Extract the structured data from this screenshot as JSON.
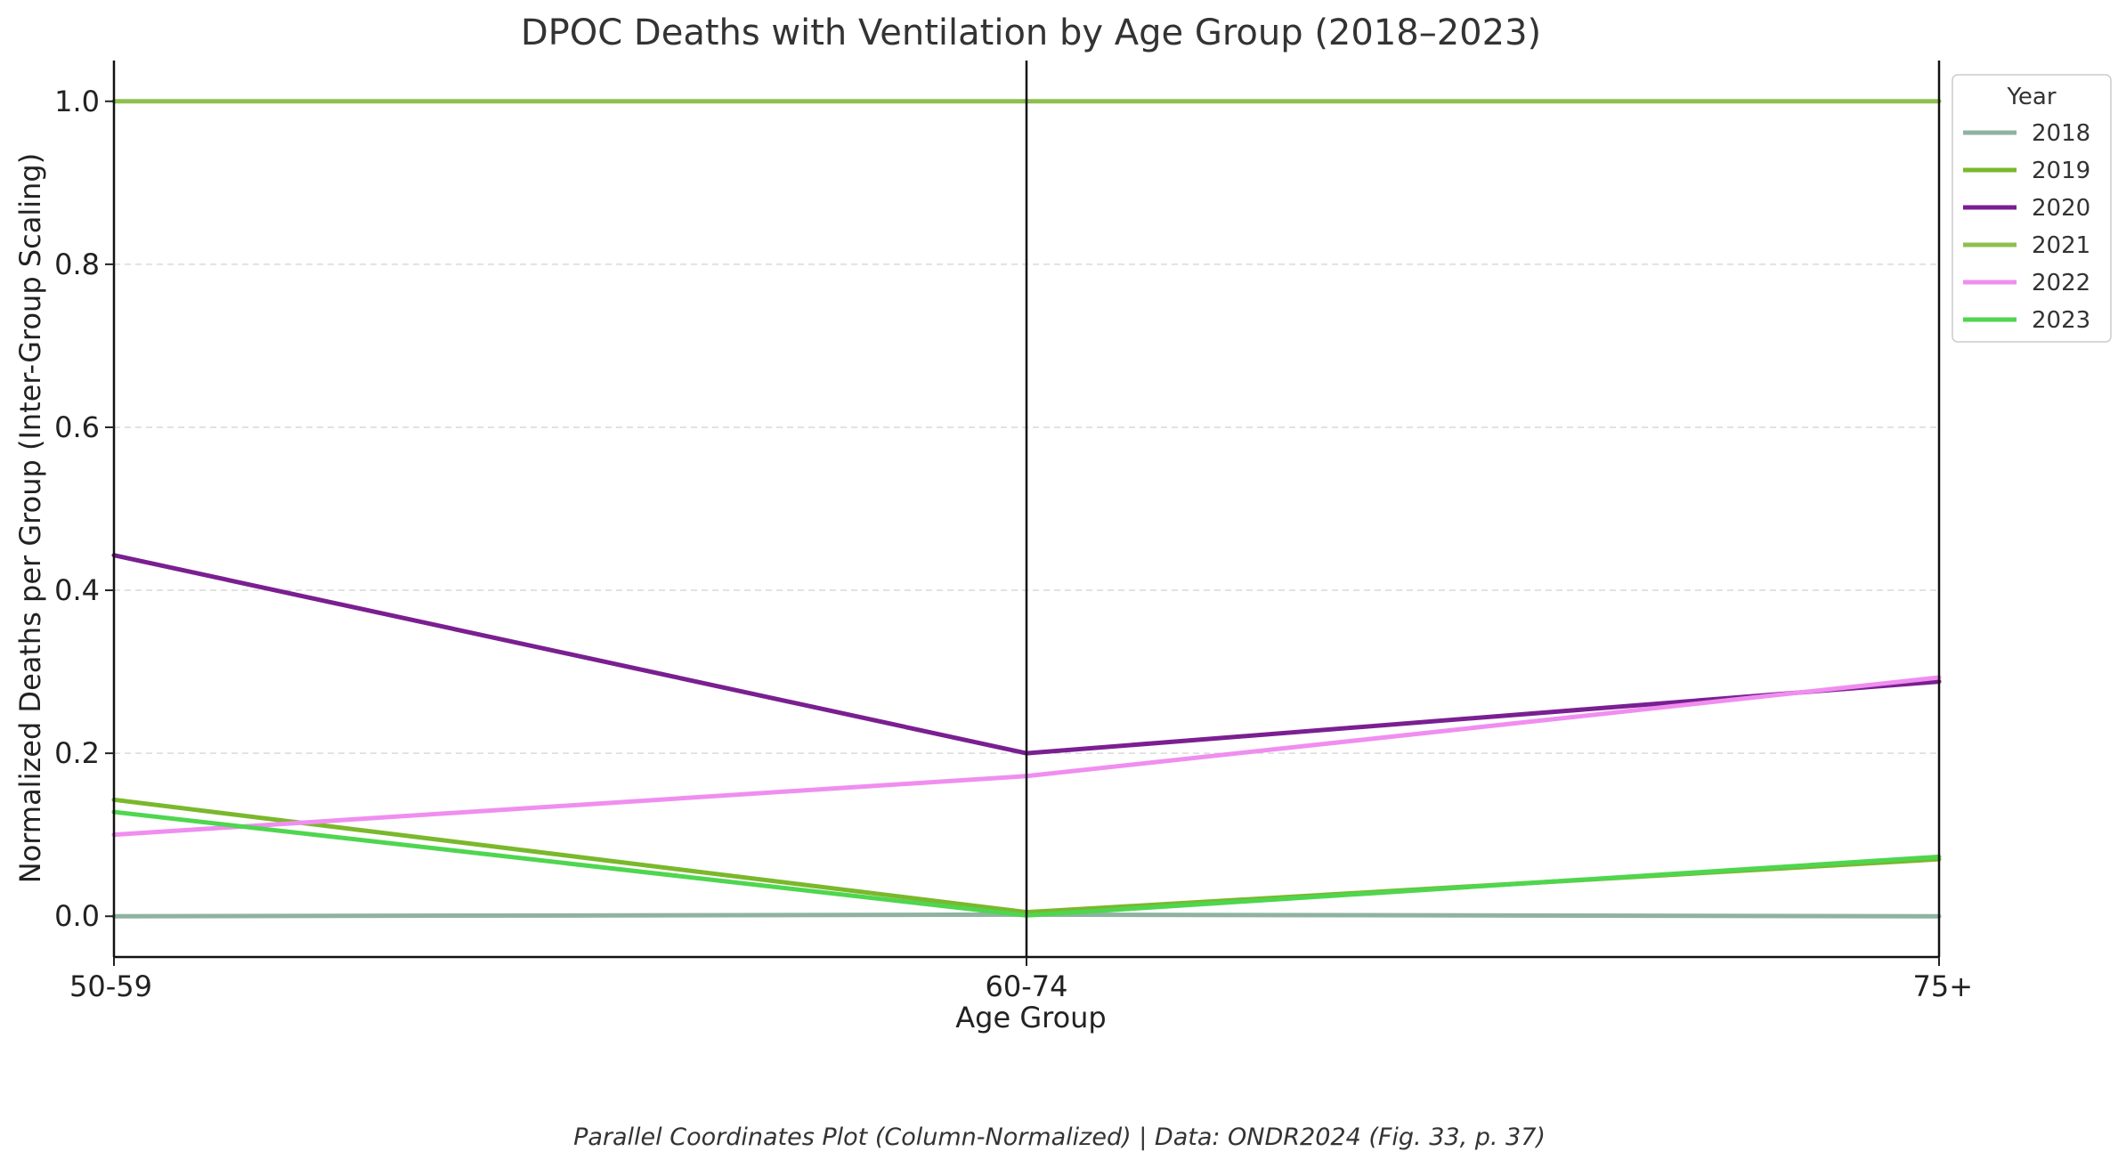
{
  "chart_data": {
    "type": "line",
    "title": "DPOC Deaths with Ventilation by Age Group (2018–2023)",
    "xlabel": "Age Group",
    "ylabel": "Normalized Deaths per Group (Inter-Group Scaling)",
    "categories": [
      "50-59",
      "60-74",
      "75+"
    ],
    "ylim": [
      -0.05,
      1.05
    ],
    "yticks": [
      "0.0",
      "0.2",
      "0.4",
      "0.6",
      "0.8",
      "1.0"
    ],
    "grid": true,
    "legend": {
      "title": "Year",
      "placement": "top-right"
    },
    "series": [
      {
        "name": "2018",
        "color": "#8fb3a0",
        "values": [
          0.0,
          0.002,
          0.0
        ]
      },
      {
        "name": "2019",
        "color": "#7ab82c",
        "values": [
          0.143,
          0.005,
          0.07
        ]
      },
      {
        "name": "2020",
        "color": "#7a1f91",
        "values": [
          0.443,
          0.2,
          0.288
        ]
      },
      {
        "name": "2021",
        "color": "#8fbf4f",
        "values": [
          1.0,
          1.0,
          1.0
        ]
      },
      {
        "name": "2022",
        "color": "#f08ef0",
        "values": [
          0.1,
          0.172,
          0.293
        ]
      },
      {
        "name": "2023",
        "color": "#4fd64f",
        "values": [
          0.128,
          0.001,
          0.073
        ]
      }
    ],
    "footnote": "Parallel Coordinates Plot (Column-Normalized) | Data: ONDR2024 (Fig. 33, p. 37)"
  }
}
